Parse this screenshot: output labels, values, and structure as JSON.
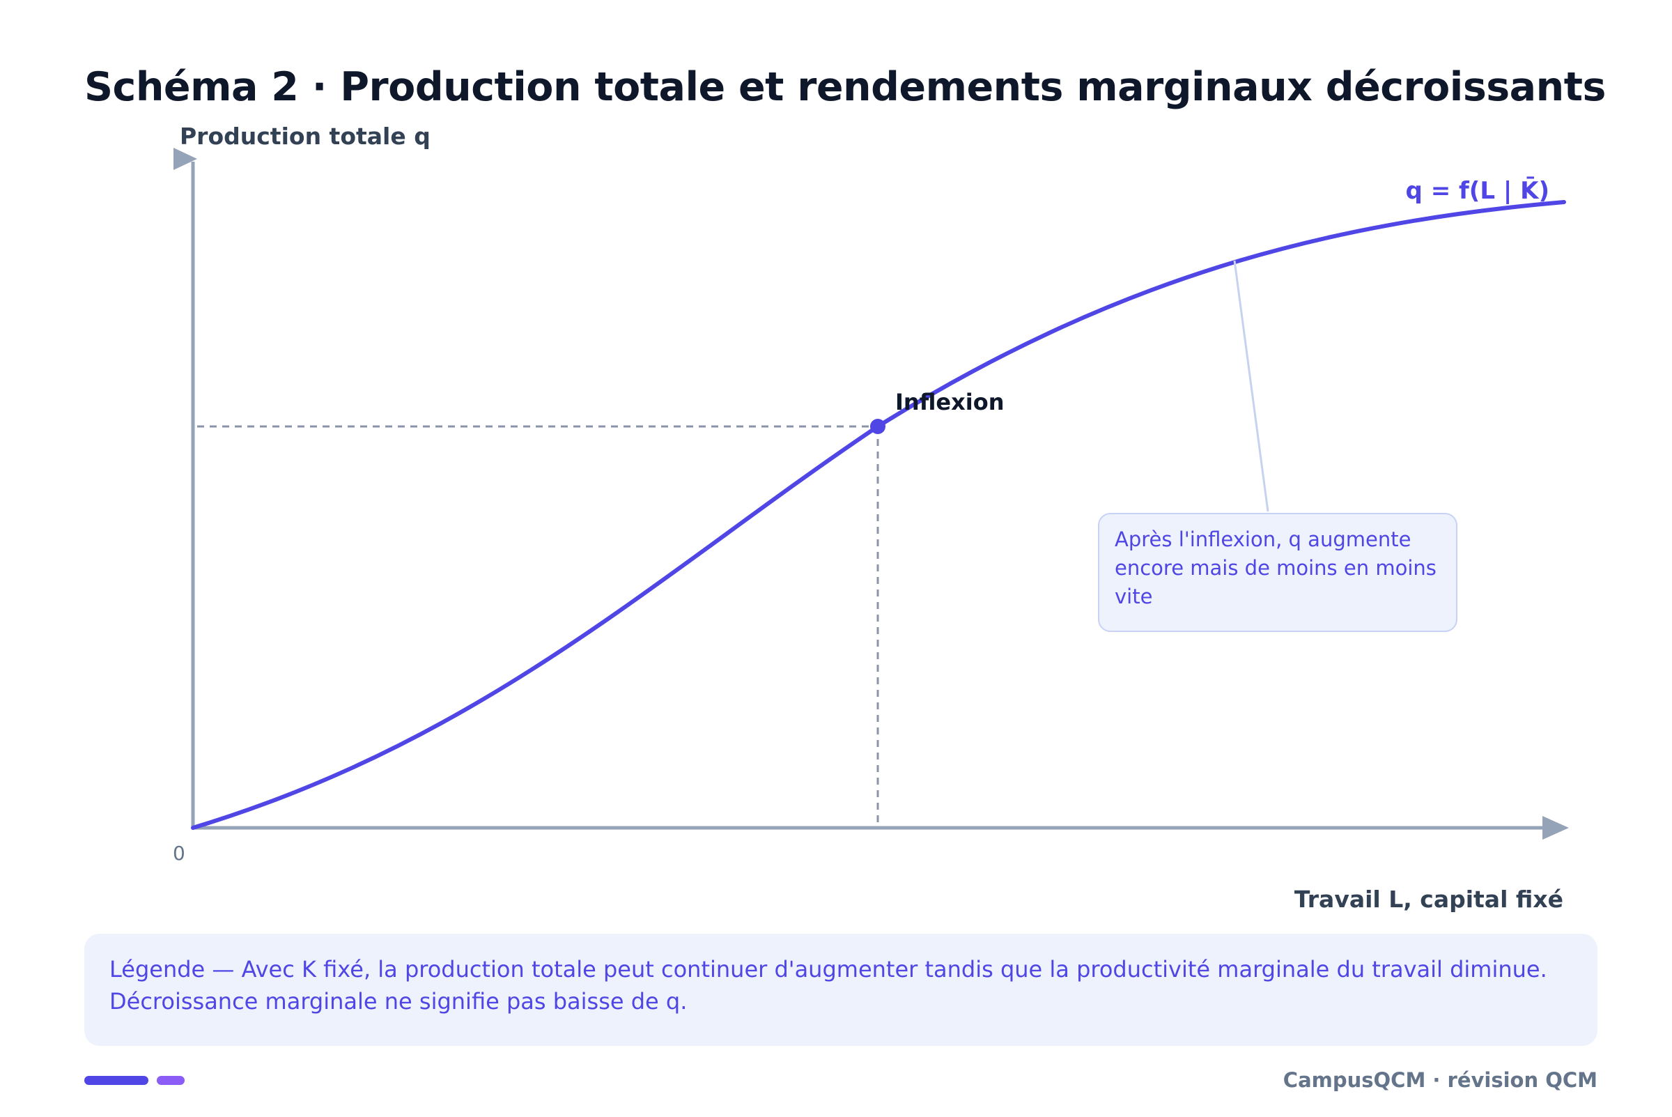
{
  "title": "Schéma 2 · Production totale et rendements marginaux décroissants",
  "axes": {
    "y_label": "Production totale q",
    "x_label": "Travail L, capital fixé",
    "origin_label": "0"
  },
  "curve": {
    "label": "q = f(L | K̄)",
    "color": "#4f46e5"
  },
  "inflexion": {
    "label": "Inflexion"
  },
  "note": {
    "text": "Après l'inflexion, q augmente encore mais de moins en moins vite"
  },
  "legend": {
    "line1": "Légende — Avec K fixé, la production totale peut continuer d'augmenter tandis que la productivité marginale du travail diminue.",
    "line2": "Décroissance marginale ne signifie pas baisse de q."
  },
  "footer": {
    "brand": "CampusQCM · révision QCM"
  },
  "colors": {
    "axis": "#94a3b8",
    "accent": "#4f46e5",
    "accent2": "#8b5cf6",
    "guide": "#8b93a8",
    "leader": "#c7d2f0"
  }
}
